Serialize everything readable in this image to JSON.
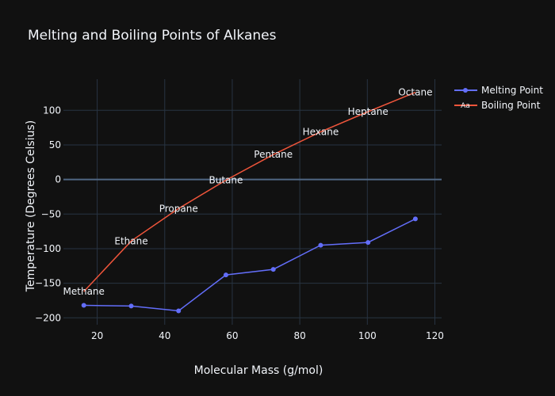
{
  "chart_data": {
    "type": "line",
    "title": "Melting and Boiling Points of Alkanes",
    "xlabel": "Molecular Mass (g/mol)",
    "ylabel": "Temperature (Degrees Celsius)",
    "xlim": [
      10,
      122
    ],
    "ylim": [
      -210,
      145
    ],
    "x_ticks": [
      20,
      40,
      60,
      80,
      100,
      120
    ],
    "y_ticks": [
      -200,
      -150,
      -100,
      -50,
      0,
      50,
      100
    ],
    "grid": true,
    "legend_position": "top-right",
    "x": [
      16.04,
      30.07,
      44.1,
      58.12,
      72.15,
      86.18,
      100.21,
      114.23
    ],
    "point_labels": [
      "Methane",
      "Ethane",
      "Propane",
      "Butane",
      "Pentane",
      "Hexane",
      "Heptane",
      "Octane"
    ],
    "series": [
      {
        "name": "Melting Point",
        "mode": "lines+markers",
        "color": "#636efa",
        "values": [
          -182,
          -183,
          -190,
          -138,
          -130,
          -95,
          -91,
          -57
        ]
      },
      {
        "name": "Boiling Point",
        "mode": "lines+text",
        "color": "#ef553b",
        "values": [
          -162,
          -89,
          -42,
          -1,
          36,
          69,
          98,
          126
        ]
      }
    ]
  }
}
